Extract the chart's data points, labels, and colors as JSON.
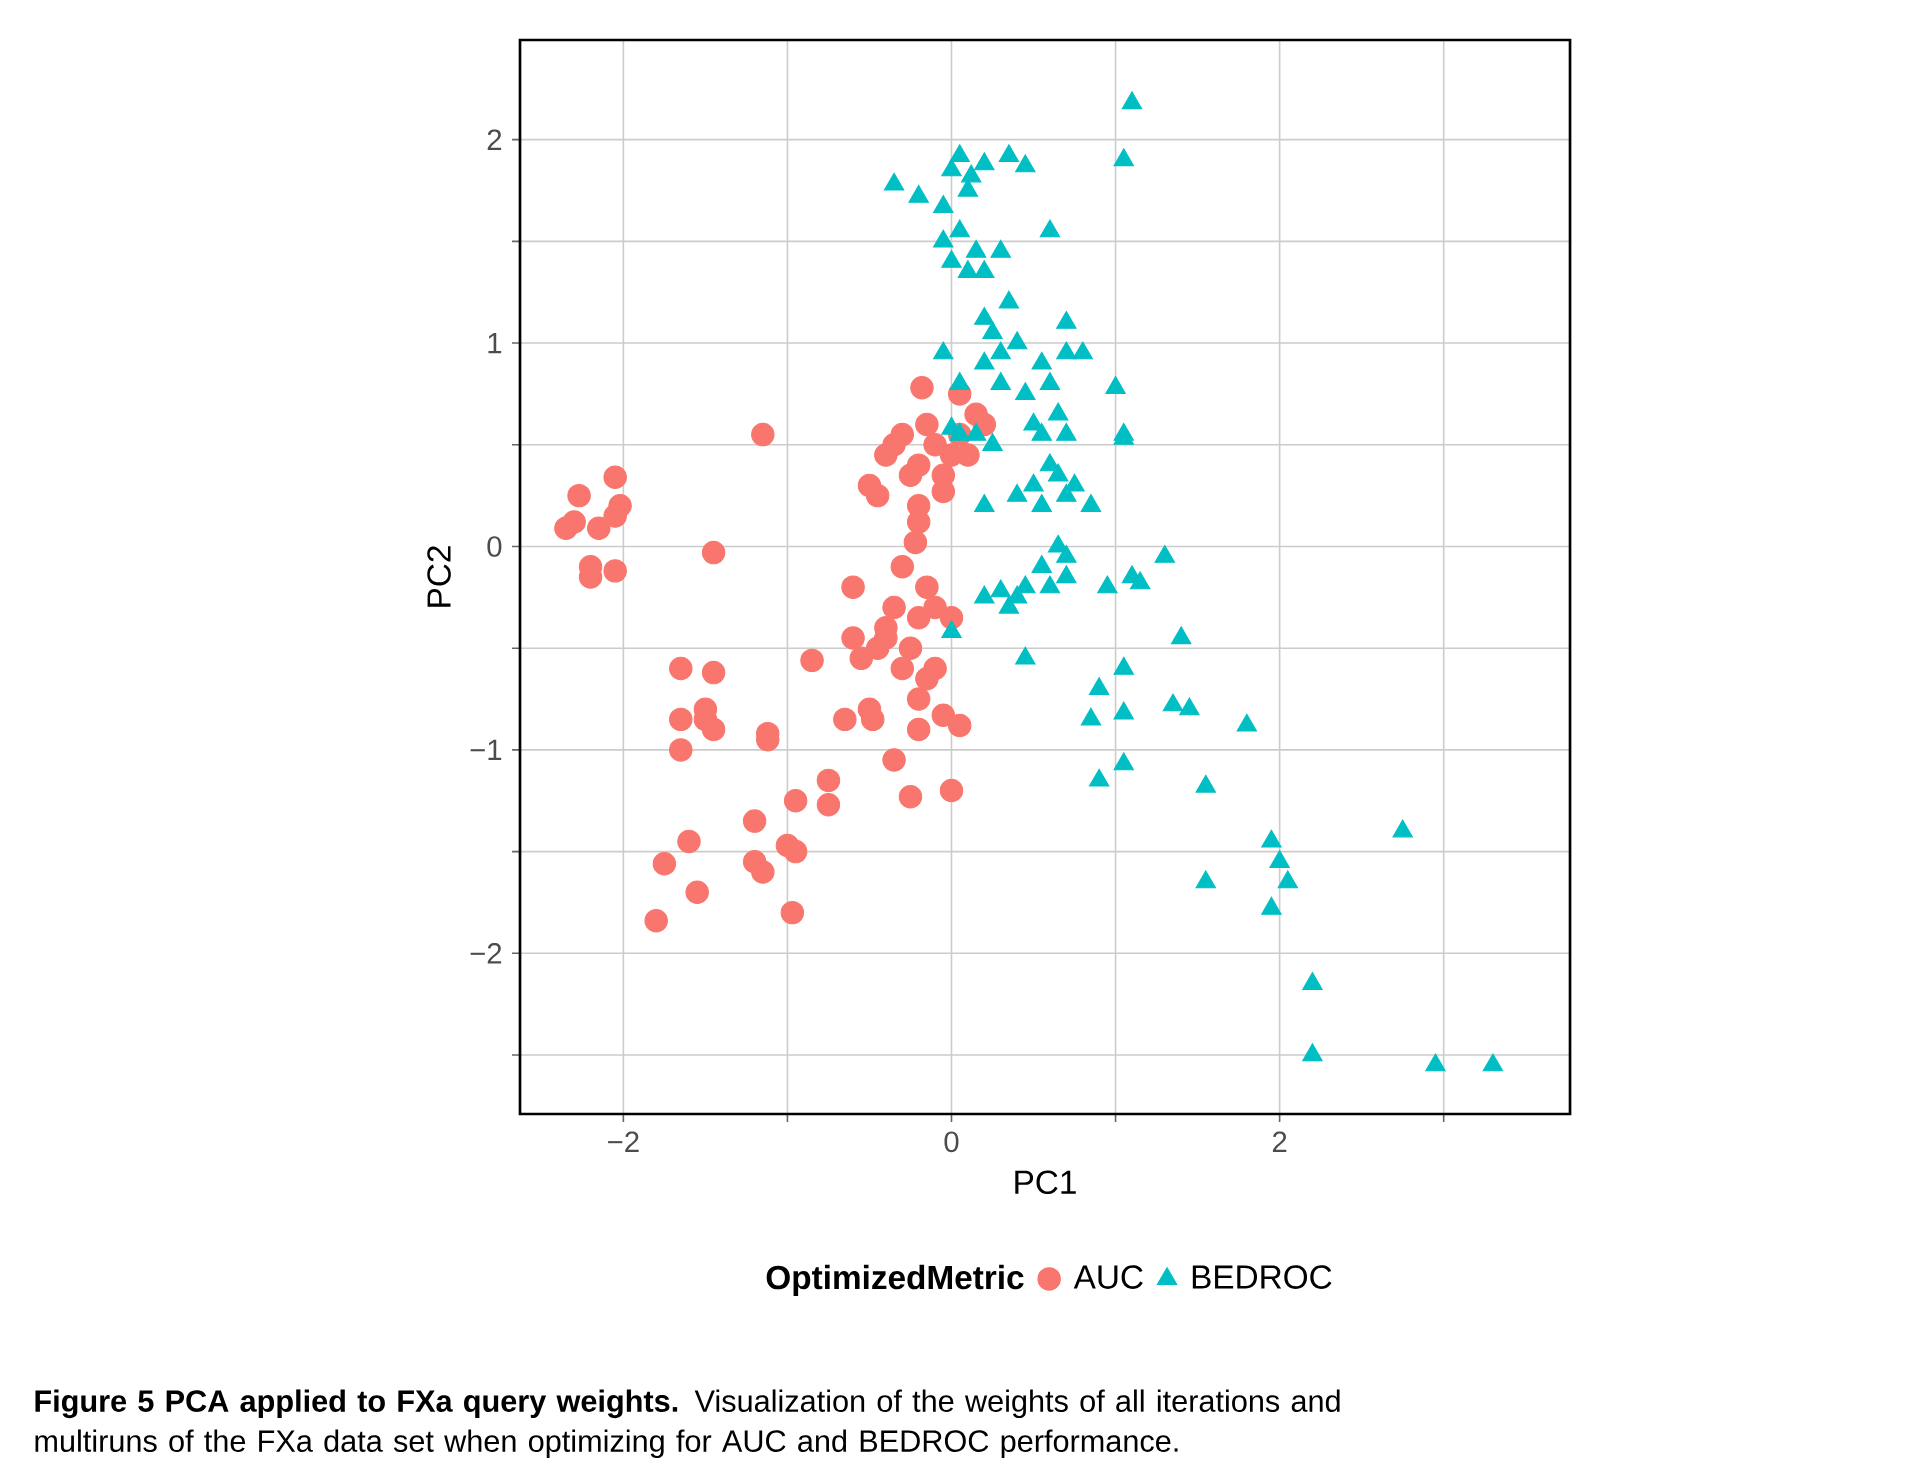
{
  "chart_data": {
    "type": "scatter",
    "xlabel": "PC1",
    "ylabel": "PC2",
    "legend_title": "OptimizedMetric",
    "legend": "bottom",
    "grid": true,
    "xlim": [
      -2.63,
      3.77
    ],
    "ylim": [
      -2.79,
      2.49
    ],
    "xticks": [
      {
        "value": -2,
        "label": "−2"
      },
      {
        "value": -1,
        "label": null
      },
      0,
      {
        "value": 1,
        "label": null
      },
      2,
      {
        "value": 3,
        "label": null
      }
    ],
    "yticks": [
      {
        "value": -2.5,
        "label": null
      },
      {
        "value": -2,
        "label": "−2"
      },
      {
        "value": -1.5,
        "label": null
      },
      {
        "value": -1,
        "label": "−1"
      },
      {
        "value": -0.5,
        "label": null
      },
      0,
      {
        "value": 0.5,
        "label": null
      },
      1,
      {
        "value": 1.5,
        "label": null
      },
      2
    ],
    "annotations": [
      "**Figure 5 PCA applied to FXa query weights.** Visualization of the weights of all iterations and multiruns of the FXa data set when optimizing for AUC and BEDROC performance."
    ],
    "series": [
      {
        "name": "AUC",
        "color": "#f8766d",
        "marker": "circle",
        "x": [
          -2.35,
          -2.3,
          -2.27,
          -2.2,
          -2.2,
          -2.15,
          -2.05,
          -2.05,
          -2.02,
          -2.05,
          -1.15,
          -1.45,
          -1.65,
          -1.65,
          -1.65,
          -1.5,
          -1.45,
          -1.45,
          -1.5,
          -1.12,
          -1.12,
          -0.85,
          -1.6,
          -1.75,
          -1.55,
          -1.8,
          -1.2,
          -1.2,
          -1.15,
          -1.0,
          -0.95,
          -0.97,
          -0.95,
          -0.75,
          -0.75,
          -0.65,
          -0.55,
          -0.6,
          -0.6,
          -0.5,
          -0.48,
          -0.45,
          -0.4,
          -0.4,
          -0.35,
          -0.35,
          -0.25,
          -0.2,
          -0.2,
          -0.1,
          -0.15,
          -0.05,
          0.05,
          0.0,
          -0.2,
          -0.1,
          -0.3,
          -0.25,
          -0.3,
          -0.15,
          -0.5,
          -0.45,
          -0.4,
          -0.35,
          -0.3,
          -0.25,
          -0.2,
          -0.2,
          -0.15,
          -0.1,
          -0.05,
          0.0,
          0.05,
          0.1,
          0.15,
          0.2,
          -0.2,
          -0.22,
          0.05,
          -0.18,
          -0.05,
          0.0
        ],
        "values": [
          0.09,
          0.12,
          0.25,
          -0.1,
          -0.15,
          0.09,
          0.34,
          0.15,
          0.2,
          -0.12,
          0.55,
          -0.03,
          -0.6,
          -0.85,
          -1.0,
          -0.8,
          -0.62,
          -0.9,
          -0.85,
          -0.92,
          -0.95,
          -0.56,
          -1.45,
          -1.56,
          -1.7,
          -1.84,
          -1.35,
          -1.55,
          -1.6,
          -1.47,
          -1.5,
          -1.8,
          -1.25,
          -1.15,
          -1.27,
          -0.85,
          -0.55,
          -0.45,
          -0.2,
          -0.8,
          -0.85,
          -0.5,
          -0.4,
          -0.45,
          -0.3,
          -1.05,
          -1.23,
          -0.75,
          -0.9,
          -0.6,
          -0.2,
          -0.83,
          -0.88,
          -1.2,
          -0.35,
          -0.3,
          -0.1,
          -0.5,
          -0.6,
          -0.65,
          0.3,
          0.25,
          0.45,
          0.5,
          0.55,
          0.35,
          0.2,
          0.4,
          0.6,
          0.5,
          0.35,
          0.45,
          0.55,
          0.45,
          0.65,
          0.6,
          0.12,
          0.02,
          0.75,
          0.78,
          0.27,
          -0.35
        ]
      },
      {
        "name": "BEDROC",
        "color": "#00bfc4",
        "marker": "triangle",
        "x": [
          -0.35,
          -0.2,
          -0.05,
          0.0,
          0.05,
          0.12,
          0.1,
          0.2,
          0.35,
          0.45,
          0.6,
          1.1,
          1.05,
          -0.05,
          0.0,
          0.05,
          0.1,
          0.15,
          0.3,
          0.2,
          0.2,
          0.25,
          0.3,
          0.35,
          0.4,
          0.2,
          0.3,
          0.45,
          0.55,
          0.6,
          0.7,
          0.7,
          0.8,
          1.0,
          0.5,
          0.55,
          0.65,
          0.7,
          1.05,
          1.05,
          -0.05,
          0.05,
          0.0,
          0.05,
          0.15,
          0.25,
          0.4,
          0.5,
          0.55,
          0.6,
          0.65,
          0.7,
          0.75,
          0.85,
          0.2,
          0.65,
          0.7,
          0.7,
          0.55,
          0.6,
          0.45,
          0.4,
          0.2,
          0.35,
          0.3,
          1.3,
          1.15,
          1.1,
          0.95,
          0.45,
          0.0,
          0.9,
          1.05,
          1.4,
          0.85,
          1.05,
          1.35,
          1.45,
          1.8,
          1.05,
          0.9,
          1.55,
          1.55,
          1.95,
          2.0,
          2.05,
          1.95,
          2.75,
          2.2,
          2.2,
          2.95,
          3.3
        ],
        "values": [
          1.78,
          1.72,
          1.67,
          1.85,
          1.92,
          1.82,
          1.75,
          1.88,
          1.92,
          1.87,
          1.55,
          2.18,
          1.9,
          1.5,
          1.4,
          1.55,
          1.35,
          1.45,
          1.45,
          1.35,
          1.12,
          1.05,
          0.95,
          1.2,
          1.0,
          0.9,
          0.8,
          0.75,
          0.9,
          0.8,
          1.1,
          0.95,
          0.95,
          0.78,
          0.6,
          0.55,
          0.65,
          0.55,
          0.55,
          0.53,
          0.95,
          0.8,
          0.58,
          0.55,
          0.55,
          0.5,
          0.25,
          0.3,
          0.2,
          0.4,
          0.35,
          0.25,
          0.3,
          0.2,
          0.2,
          0.0,
          -0.05,
          -0.15,
          -0.1,
          -0.2,
          -0.2,
          -0.25,
          -0.25,
          -0.3,
          -0.22,
          -0.05,
          -0.18,
          -0.15,
          -0.2,
          -0.55,
          -0.42,
          -0.7,
          -0.6,
          -0.45,
          -0.85,
          -0.82,
          -0.78,
          -0.8,
          -0.88,
          -1.07,
          -1.15,
          -1.18,
          -1.65,
          -1.45,
          -1.55,
          -1.65,
          -1.78,
          -1.4,
          -2.15,
          -2.5,
          -2.55,
          -2.55
        ]
      }
    ]
  }
}
